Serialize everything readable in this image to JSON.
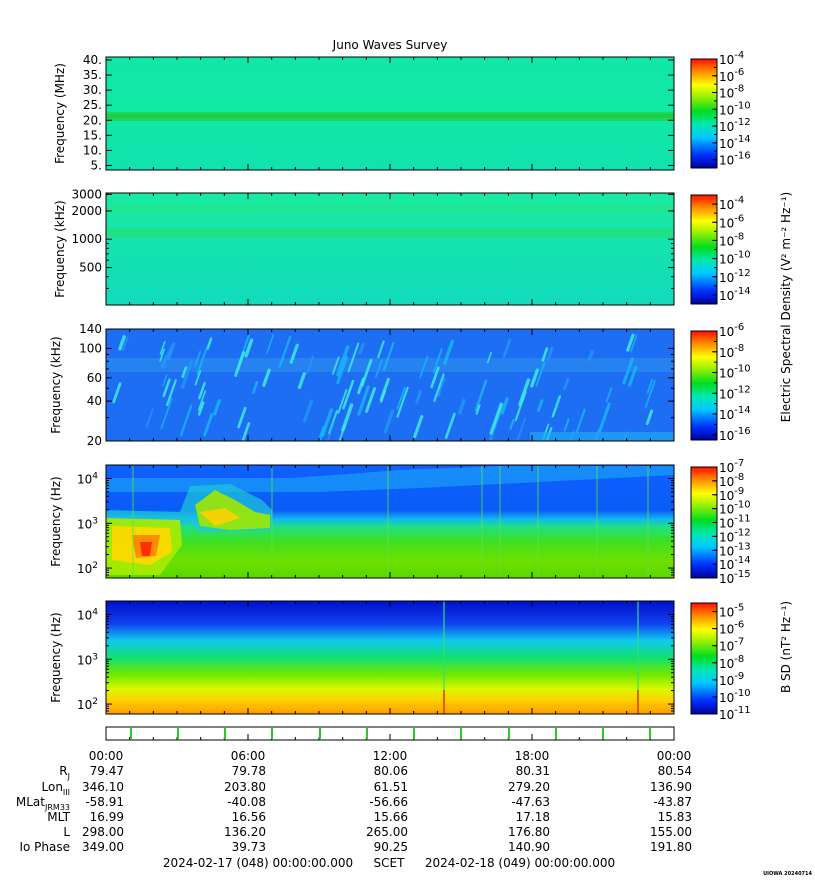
{
  "title": "Juno Waves Survey",
  "credit": "UIOWA 20240714",
  "colorbar_label_e": "Electric Spectral Density (V² m⁻² Hz⁻¹)",
  "colorbar_label_b": "B SD (nT² Hz⁻¹)",
  "chart_data": [
    {
      "type": "heatmap",
      "panel": 1,
      "ylabel": "Frequency (MHz)",
      "yscale": "linear",
      "ylim": [
        3.5,
        41
      ],
      "yticks": [
        "40.",
        "35.",
        "30.",
        "25.",
        "20.",
        "15.",
        "10.",
        "5."
      ],
      "ytick_values": [
        40,
        35,
        30,
        25,
        20,
        15,
        10,
        5
      ],
      "colorbar": {
        "exponents": [
          -4,
          -6,
          -8,
          -10,
          -12,
          -14,
          -16
        ],
        "range": [
          -17,
          -4
        ]
      },
      "features": [
        "narrow brighter band near 21 MHz"
      ]
    },
    {
      "type": "heatmap",
      "panel": 2,
      "ylabel": "Frequency (kHz)",
      "yscale": "log",
      "ylim": [
        200,
        3100
      ],
      "yticks": [
        "3000",
        "2000",
        "1000",
        "500"
      ],
      "ytick_values": [
        3000,
        2000,
        1000,
        500
      ],
      "colorbar": {
        "exponents": [
          -4,
          -6,
          -8,
          -10,
          -12,
          -14
        ],
        "range": [
          -15,
          -3
        ]
      }
    },
    {
      "type": "heatmap",
      "panel": 3,
      "ylabel": "Frequency (kHz)",
      "yscale": "log",
      "ylim": [
        20,
        140
      ],
      "yticks": [
        "140",
        "100",
        "60",
        "40",
        "20"
      ],
      "ytick_values": [
        140,
        100,
        60,
        40,
        20
      ],
      "colorbar": {
        "exponents": [
          -6,
          -8,
          -10,
          -12,
          -14,
          -16
        ],
        "range": [
          -16.5,
          -6
        ]
      }
    },
    {
      "type": "heatmap",
      "panel": 4,
      "ylabel": "Frequency (Hz)",
      "yscale": "log",
      "ylim": [
        60,
        20000
      ],
      "yticks": [
        {
          "base": "10",
          "exp": "4",
          "value": 10000
        },
        {
          "base": "10",
          "exp": "3",
          "value": 1000
        },
        {
          "base": "10",
          "exp": "2",
          "value": 100
        }
      ],
      "colorbar": {
        "exponents": [
          -7,
          -8,
          -9,
          -10,
          -11,
          -12,
          -13,
          -14,
          -15
        ],
        "range": [
          -15,
          -7
        ]
      }
    },
    {
      "type": "heatmap",
      "panel": 5,
      "ylabel": "Frequency (Hz)",
      "yscale": "log",
      "ylim": [
        60,
        20000
      ],
      "yticks": [
        {
          "base": "10",
          "exp": "4",
          "value": 10000
        },
        {
          "base": "10",
          "exp": "3",
          "value": 1000
        },
        {
          "base": "10",
          "exp": "2",
          "value": 100
        }
      ],
      "colorbar": {
        "exponents": [
          -5,
          -6,
          -7,
          -8,
          -9,
          -10,
          -11
        ],
        "range": [
          -11,
          -4.5
        ]
      }
    }
  ],
  "time_axis": {
    "ticks": [
      "00:00",
      "06:00",
      "12:00",
      "18:00",
      "00:00"
    ],
    "start": "2024-02-17 (048) 00:00:00.000",
    "mid": "SCET",
    "end": "2024-02-18 (049) 00:00:00.000"
  },
  "ephemeris": [
    {
      "label": "R",
      "sub": "J",
      "values": [
        "79.47",
        "79.78",
        "80.06",
        "80.31",
        "80.54"
      ]
    },
    {
      "label": "Lon",
      "sub": "III",
      "values": [
        "346.10",
        "203.80",
        "61.51",
        "279.20",
        "136.90"
      ]
    },
    {
      "label": "MLat",
      "sub": "JRM33",
      "values": [
        "-58.91",
        "-40.08",
        "-56.66",
        "-47.63",
        "-43.87"
      ]
    },
    {
      "label": "MLT",
      "sub": "",
      "values": [
        "16.99",
        "16.56",
        "15.66",
        "17.18",
        "15.83"
      ]
    },
    {
      "label": "L",
      "sub": "",
      "values": [
        "298.00",
        "136.20",
        "265.00",
        "176.80",
        "155.00"
      ]
    },
    {
      "label": "Io Phase",
      "sub": "",
      "values": [
        "349.00",
        "39.73",
        "90.25",
        "140.90",
        "191.80"
      ]
    }
  ]
}
